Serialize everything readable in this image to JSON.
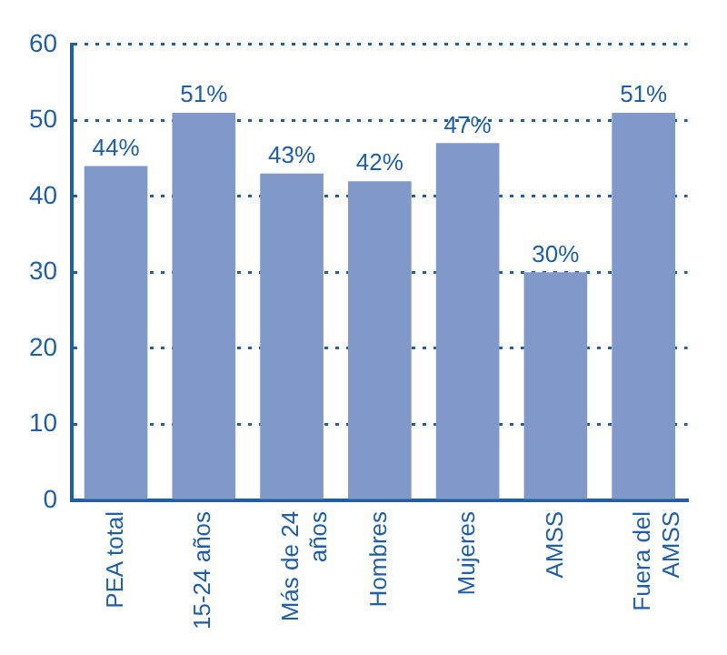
{
  "chart_data": {
    "type": "bar",
    "categories": [
      "PEA total",
      "15-24 años",
      "Más de 24 años",
      "Hombres",
      "Mujeres",
      "AMSS",
      "Fuera del AMSS"
    ],
    "values": [
      44,
      51,
      43,
      42,
      47,
      30,
      51
    ],
    "value_labels": [
      "44%",
      "51%",
      "43%",
      "42%",
      "47%",
      "30%",
      "51%"
    ],
    "color": "#8199c8",
    "ylim": [
      0,
      60
    ],
    "yticks": [
      0,
      10,
      20,
      30,
      40,
      50,
      60
    ],
    "grid": "y",
    "line_style": "dotted"
  }
}
